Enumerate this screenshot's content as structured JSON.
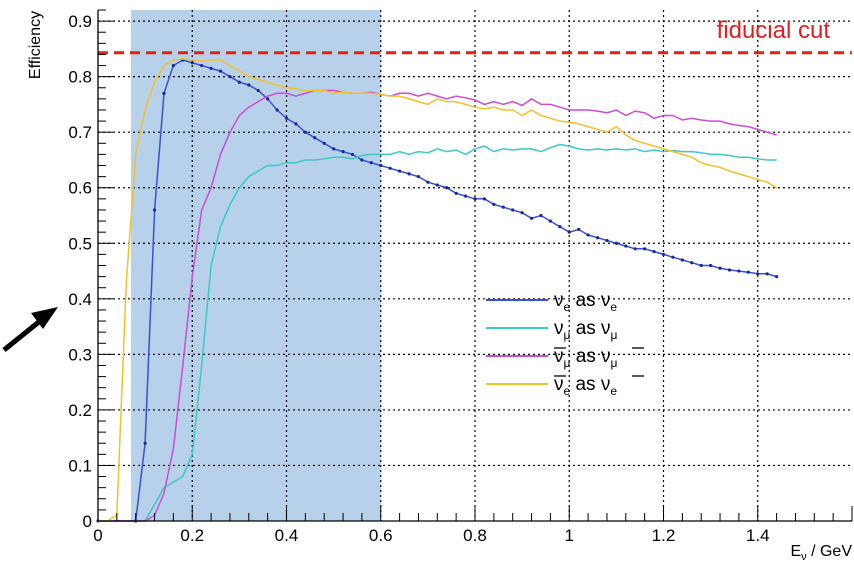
{
  "chart_data": {
    "type": "line",
    "xlabel": "E_ν / GeV",
    "xlabel_main": "E",
    "xlabel_sub": "ν",
    "xlabel_rest": " / GeV",
    "ylabel": "Efficiency",
    "xlim": [
      0,
      1.6
    ],
    "ylim": [
      0,
      0.92
    ],
    "x_ticks": [
      0,
      0.2,
      0.4,
      0.6,
      0.8,
      1,
      1.2,
      1.4
    ],
    "x_tick_labels": [
      "0",
      "0.2",
      "0.4",
      "0.6",
      "0.8",
      "1",
      "1.2",
      "1.4"
    ],
    "y_ticks": [
      0,
      0.1,
      0.2,
      0.3,
      0.4,
      0.5,
      0.6,
      0.7,
      0.8,
      0.9
    ],
    "y_tick_labels": [
      "0",
      "0.1",
      "0.2",
      "0.3",
      "0.4",
      "0.5",
      "0.6",
      "0.7",
      "0.8",
      "0.9"
    ],
    "grid": true,
    "legend_position": "center-right",
    "shaded_region": {
      "x": [
        0.07,
        0.6
      ],
      "color": "#b8d1ea"
    },
    "fiducial_cut": {
      "y": 0.843,
      "label": "fiducial cut",
      "color": "#e02020"
    },
    "series": [
      {
        "legend": [
          "ν",
          "e",
          " as ",
          "ν",
          "e"
        ],
        "bar": false,
        "color": "#3b4fd4",
        "markers": true,
        "x": [
          0,
          0.08,
          0.1,
          0.12,
          0.14,
          0.16,
          0.18,
          0.2,
          0.22,
          0.24,
          0.26,
          0.28,
          0.3,
          0.32,
          0.34,
          0.36,
          0.38,
          0.4,
          0.42,
          0.44,
          0.46,
          0.48,
          0.5,
          0.52,
          0.54,
          0.56,
          0.58,
          0.6,
          0.62,
          0.64,
          0.66,
          0.68,
          0.7,
          0.72,
          0.74,
          0.76,
          0.78,
          0.8,
          0.82,
          0.84,
          0.86,
          0.88,
          0.9,
          0.92,
          0.94,
          0.96,
          0.98,
          1.0,
          1.02,
          1.04,
          1.06,
          1.08,
          1.1,
          1.12,
          1.14,
          1.16,
          1.18,
          1.2,
          1.22,
          1.24,
          1.26,
          1.28,
          1.3,
          1.32,
          1.34,
          1.36,
          1.38,
          1.4,
          1.42,
          1.44
        ],
        "y": [
          0,
          0,
          0.14,
          0.56,
          0.77,
          0.82,
          0.83,
          0.825,
          0.82,
          0.815,
          0.81,
          0.8,
          0.79,
          0.785,
          0.775,
          0.76,
          0.74,
          0.725,
          0.715,
          0.7,
          0.69,
          0.68,
          0.67,
          0.665,
          0.66,
          0.65,
          0.645,
          0.64,
          0.635,
          0.63,
          0.625,
          0.62,
          0.61,
          0.605,
          0.6,
          0.59,
          0.585,
          0.58,
          0.58,
          0.57,
          0.565,
          0.56,
          0.555,
          0.545,
          0.55,
          0.54,
          0.53,
          0.52,
          0.525,
          0.515,
          0.51,
          0.505,
          0.5,
          0.495,
          0.49,
          0.49,
          0.485,
          0.48,
          0.475,
          0.47,
          0.465,
          0.46,
          0.46,
          0.455,
          0.452,
          0.45,
          0.448,
          0.445,
          0.445,
          0.44
        ]
      },
      {
        "legend": [
          "ν",
          "μ",
          " as ",
          "ν",
          "μ"
        ],
        "bar": false,
        "color": "#3cc8c8",
        "markers": false,
        "x": [
          0,
          0.1,
          0.12,
          0.14,
          0.16,
          0.18,
          0.2,
          0.22,
          0.24,
          0.26,
          0.28,
          0.3,
          0.32,
          0.34,
          0.36,
          0.38,
          0.4,
          0.42,
          0.44,
          0.46,
          0.48,
          0.5,
          0.52,
          0.54,
          0.56,
          0.58,
          0.6,
          0.62,
          0.64,
          0.66,
          0.68,
          0.7,
          0.72,
          0.74,
          0.76,
          0.78,
          0.8,
          0.82,
          0.84,
          0.86,
          0.88,
          0.9,
          0.92,
          0.94,
          0.96,
          0.98,
          1.0,
          1.02,
          1.04,
          1.06,
          1.08,
          1.1,
          1.12,
          1.14,
          1.16,
          1.18,
          1.2,
          1.22,
          1.24,
          1.26,
          1.28,
          1.3,
          1.32,
          1.34,
          1.36,
          1.38,
          1.4,
          1.42,
          1.44
        ],
        "y": [
          0,
          0,
          0.03,
          0.06,
          0.07,
          0.08,
          0.12,
          0.28,
          0.46,
          0.53,
          0.57,
          0.6,
          0.62,
          0.63,
          0.64,
          0.64,
          0.645,
          0.645,
          0.65,
          0.65,
          0.652,
          0.655,
          0.655,
          0.652,
          0.658,
          0.66,
          0.66,
          0.66,
          0.665,
          0.66,
          0.665,
          0.663,
          0.67,
          0.665,
          0.668,
          0.66,
          0.67,
          0.675,
          0.665,
          0.67,
          0.668,
          0.67,
          0.67,
          0.665,
          0.672,
          0.678,
          0.675,
          0.67,
          0.668,
          0.67,
          0.668,
          0.67,
          0.668,
          0.67,
          0.665,
          0.668,
          0.665,
          0.667,
          0.665,
          0.665,
          0.663,
          0.66,
          0.66,
          0.658,
          0.655,
          0.655,
          0.652,
          0.65,
          0.65
        ]
      },
      {
        "legend": [
          "ν",
          "μ",
          " as ",
          "ν",
          "μ"
        ],
        "bar": true,
        "color": "#c84ed4",
        "markers": false,
        "x": [
          0,
          0.1,
          0.12,
          0.14,
          0.16,
          0.18,
          0.2,
          0.22,
          0.24,
          0.26,
          0.28,
          0.3,
          0.32,
          0.34,
          0.36,
          0.38,
          0.4,
          0.42,
          0.44,
          0.46,
          0.48,
          0.5,
          0.52,
          0.54,
          0.56,
          0.58,
          0.6,
          0.62,
          0.64,
          0.66,
          0.68,
          0.7,
          0.72,
          0.74,
          0.76,
          0.78,
          0.8,
          0.82,
          0.84,
          0.86,
          0.88,
          0.9,
          0.92,
          0.94,
          0.96,
          0.98,
          1.0,
          1.02,
          1.04,
          1.06,
          1.08,
          1.1,
          1.12,
          1.14,
          1.16,
          1.18,
          1.2,
          1.22,
          1.24,
          1.26,
          1.28,
          1.3,
          1.32,
          1.34,
          1.36,
          1.38,
          1.4,
          1.42,
          1.44
        ],
        "y": [
          0,
          0,
          0.01,
          0.05,
          0.13,
          0.28,
          0.44,
          0.56,
          0.6,
          0.66,
          0.7,
          0.73,
          0.745,
          0.755,
          0.765,
          0.77,
          0.77,
          0.765,
          0.77,
          0.775,
          0.775,
          0.775,
          0.772,
          0.77,
          0.77,
          0.772,
          0.768,
          0.765,
          0.77,
          0.77,
          0.765,
          0.77,
          0.765,
          0.76,
          0.765,
          0.762,
          0.758,
          0.75,
          0.755,
          0.75,
          0.755,
          0.748,
          0.76,
          0.75,
          0.75,
          0.745,
          0.74,
          0.74,
          0.74,
          0.738,
          0.735,
          0.74,
          0.73,
          0.738,
          0.735,
          0.725,
          0.73,
          0.73,
          0.722,
          0.725,
          0.722,
          0.72,
          0.72,
          0.715,
          0.712,
          0.71,
          0.705,
          0.7,
          0.695
        ]
      },
      {
        "legend": [
          "ν",
          "e",
          " as ",
          "ν",
          "e"
        ],
        "bar": true,
        "color": "#f2c12e",
        "markers": false,
        "x": [
          0,
          0.02,
          0.04,
          0.06,
          0.08,
          0.1,
          0.12,
          0.14,
          0.16,
          0.18,
          0.2,
          0.22,
          0.24,
          0.26,
          0.28,
          0.3,
          0.32,
          0.34,
          0.36,
          0.38,
          0.4,
          0.42,
          0.44,
          0.46,
          0.48,
          0.5,
          0.52,
          0.54,
          0.56,
          0.58,
          0.6,
          0.62,
          0.64,
          0.66,
          0.68,
          0.7,
          0.72,
          0.74,
          0.76,
          0.78,
          0.8,
          0.82,
          0.84,
          0.86,
          0.88,
          0.9,
          0.92,
          0.94,
          0.96,
          0.98,
          1.0,
          1.02,
          1.04,
          1.06,
          1.08,
          1.1,
          1.12,
          1.14,
          1.16,
          1.18,
          1.2,
          1.22,
          1.24,
          1.26,
          1.28,
          1.3,
          1.32,
          1.34,
          1.36,
          1.38,
          1.4,
          1.42,
          1.44
        ],
        "y": [
          0,
          0,
          0.01,
          0.43,
          0.66,
          0.74,
          0.79,
          0.82,
          0.83,
          0.832,
          0.83,
          0.828,
          0.83,
          0.83,
          0.82,
          0.81,
          0.8,
          0.795,
          0.79,
          0.785,
          0.78,
          0.778,
          0.775,
          0.775,
          0.775,
          0.77,
          0.772,
          0.77,
          0.77,
          0.77,
          0.768,
          0.765,
          0.765,
          0.76,
          0.755,
          0.75,
          0.76,
          0.755,
          0.755,
          0.75,
          0.745,
          0.742,
          0.745,
          0.74,
          0.74,
          0.73,
          0.74,
          0.73,
          0.725,
          0.72,
          0.718,
          0.715,
          0.71,
          0.705,
          0.7,
          0.71,
          0.695,
          0.685,
          0.68,
          0.675,
          0.67,
          0.665,
          0.66,
          0.655,
          0.645,
          0.64,
          0.637,
          0.63,
          0.625,
          0.62,
          0.615,
          0.61,
          0.6
        ]
      }
    ]
  }
}
